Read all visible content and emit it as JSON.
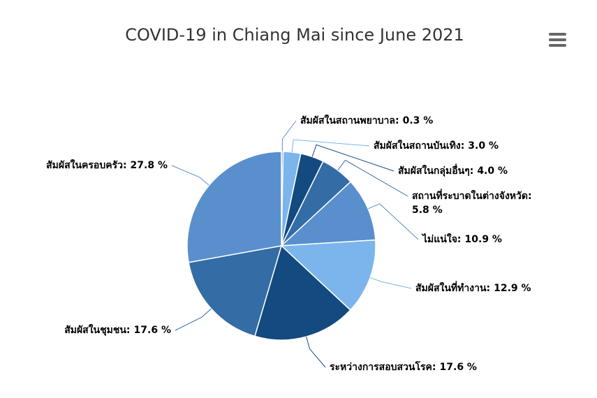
{
  "chart_data": {
    "type": "pie",
    "title": "COVID-19 in Chiang Mai since June 2021",
    "categories": [
      "สัมผัสในสถานพยาบาล:",
      "สัมผัสในสถานบันเทิง:",
      "สัมผัสในกลุ่มอื่นๆ:",
      "สถานที่ระบาดในต่างจังหวัด:",
      "ไม่แน่ใจ:",
      "สัมผัสในที่ทำงาน:",
      "ระหว่างการสอบสวนโรค:",
      "สัมผัสในชุมชน:",
      "สัมผัสในครอบครัว:"
    ],
    "values": [
      0.3,
      3.0,
      4.0,
      5.8,
      10.9,
      12.9,
      17.6,
      17.6,
      27.8
    ],
    "value_labels": [
      "0.3 %",
      "3.0 %",
      "4.0 %",
      "5.8 %",
      "10.9 %",
      "12.9 %",
      "17.6 %",
      "17.6 %",
      "27.8 %"
    ],
    "colors": [
      "#5a8fce",
      "#7cb5ec",
      "#134a80",
      "#346ca6",
      "#5a8fce",
      "#7cb5ec",
      "#134a80",
      "#346ca6",
      "#5a8fce"
    ]
  }
}
